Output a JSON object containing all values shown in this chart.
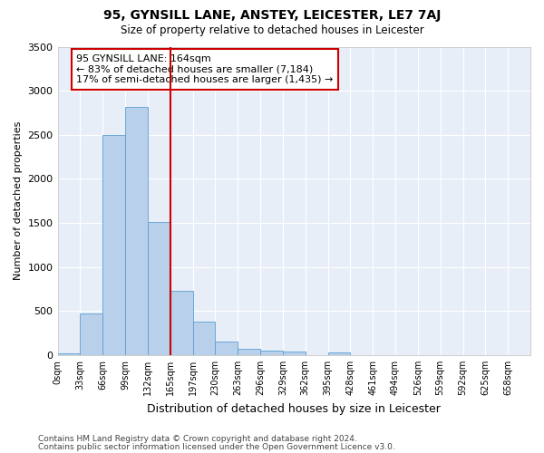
{
  "title": "95, GYNSILL LANE, ANSTEY, LEICESTER, LE7 7AJ",
  "subtitle": "Size of property relative to detached houses in Leicester",
  "xlabel": "Distribution of detached houses by size in Leicester",
  "ylabel": "Number of detached properties",
  "bin_labels": [
    "0sqm",
    "33sqm",
    "66sqm",
    "99sqm",
    "132sqm",
    "165sqm",
    "197sqm",
    "230sqm",
    "263sqm",
    "296sqm",
    "329sqm",
    "362sqm",
    "395sqm",
    "428sqm",
    "461sqm",
    "494sqm",
    "526sqm",
    "559sqm",
    "592sqm",
    "625sqm",
    "658sqm"
  ],
  "bar_values": [
    20,
    470,
    2500,
    2820,
    1510,
    730,
    380,
    155,
    75,
    50,
    40,
    0,
    30,
    0,
    0,
    0,
    0,
    0,
    0,
    0
  ],
  "bar_color": "#b8d0ea",
  "bar_edge_color": "#5a9fd4",
  "vline_x": 5,
  "vline_color": "#cc0000",
  "annotation_text": "95 GYNSILL LANE: 164sqm\n← 83% of detached houses are smaller (7,184)\n17% of semi-detached houses are larger (1,435) →",
  "annotation_box_color": "#ffffff",
  "annotation_box_edge": "#cc0000",
  "ylim": [
    0,
    3500
  ],
  "yticks": [
    0,
    500,
    1000,
    1500,
    2000,
    2500,
    3000,
    3500
  ],
  "bg_color": "#e8eef8",
  "grid_color": "#ffffff",
  "footnote1": "Contains HM Land Registry data © Crown copyright and database right 2024.",
  "footnote2": "Contains public sector information licensed under the Open Government Licence v3.0."
}
